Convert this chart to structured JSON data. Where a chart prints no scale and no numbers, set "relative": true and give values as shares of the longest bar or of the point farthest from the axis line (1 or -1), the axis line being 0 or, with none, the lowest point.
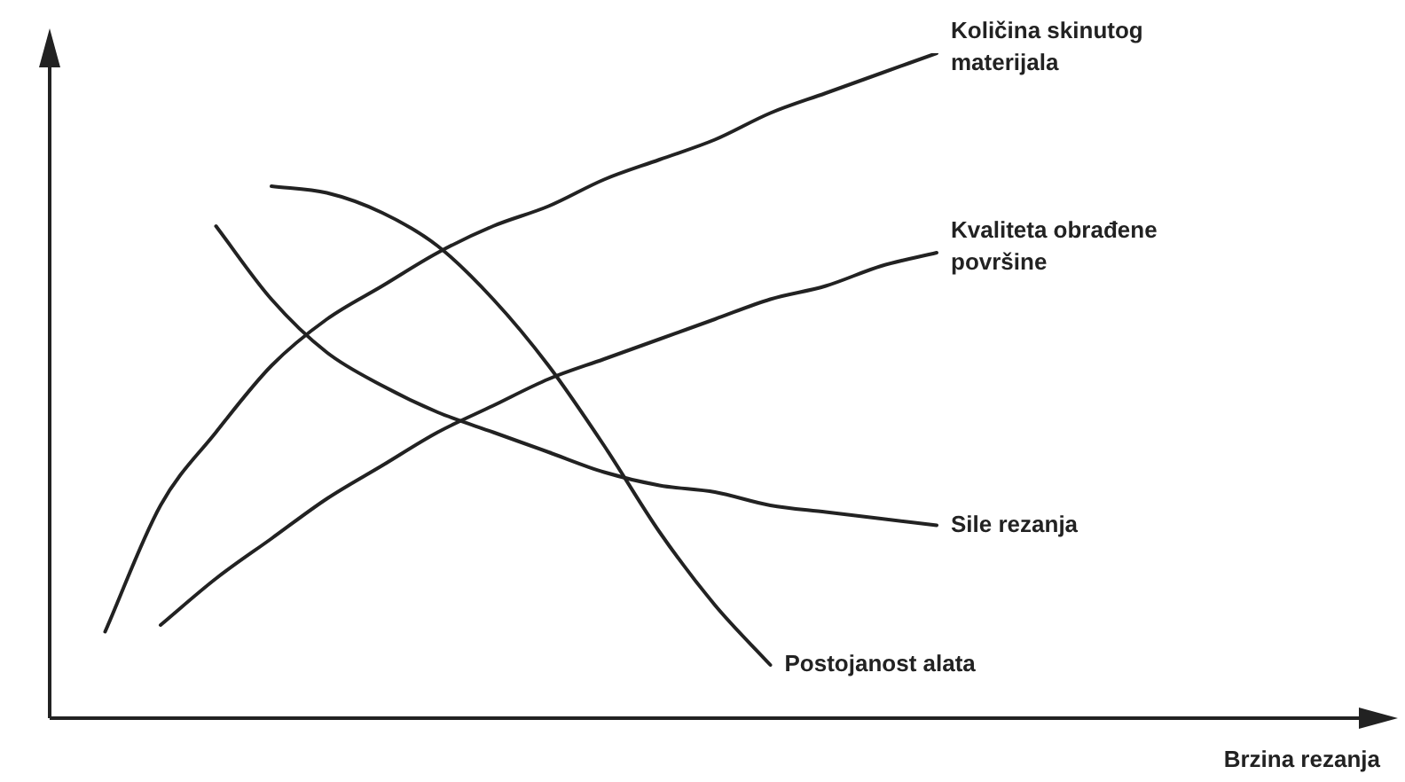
{
  "chart_data": {
    "type": "line",
    "relative": true,
    "xlabel": "Brzina rezanja",
    "tick_labels": false,
    "legend": false,
    "marker": "none",
    "line_style": "solid",
    "grid": false,
    "categories": [
      null,
      null,
      null,
      null,
      null,
      null,
      null,
      null,
      null,
      null,
      null,
      null,
      null,
      null,
      null,
      null,
      null,
      null,
      null,
      null,
      null,
      null,
      null,
      null,
      null
    ],
    "series": [
      {
        "name": "Količina skinutog materijala",
        "color": "#222222",
        "values": [
          null,
          0.13,
          0.32,
          0.43,
          0.53,
          0.6,
          0.65,
          0.7,
          0.74,
          0.77,
          0.81,
          0.84,
          0.87,
          0.91,
          0.94,
          0.97,
          1,
          null,
          null,
          null,
          null,
          null,
          null,
          null,
          null
        ]
      },
      {
        "name": "Kvaliteta obrađene površine",
        "color": "#222222",
        "values": [
          null,
          null,
          0.14,
          0.21,
          0.27,
          0.33,
          0.38,
          0.43,
          0.47,
          0.51,
          0.54,
          0.57,
          0.6,
          0.63,
          0.65,
          0.68,
          0.7,
          null,
          null,
          null,
          null,
          null,
          null,
          null,
          null
        ]
      },
      {
        "name": "Sile rezanja",
        "color": "#222222",
        "values": [
          null,
          null,
          null,
          0.74,
          0.63,
          0.55,
          0.5,
          0.46,
          0.43,
          0.4,
          0.37,
          0.35,
          0.34,
          0.32,
          0.31,
          0.3,
          0.29,
          null,
          null,
          null,
          null,
          null,
          null,
          null,
          null
        ]
      },
      {
        "name": "Postojanost alata",
        "color": "#222222",
        "values": [
          null,
          null,
          null,
          null,
          0.8,
          0.79,
          0.76,
          0.71,
          0.63,
          0.53,
          0.41,
          0.28,
          0.17,
          0.08,
          null,
          null,
          null,
          null,
          null,
          null,
          null,
          null,
          null,
          null,
          null
        ]
      }
    ]
  }
}
